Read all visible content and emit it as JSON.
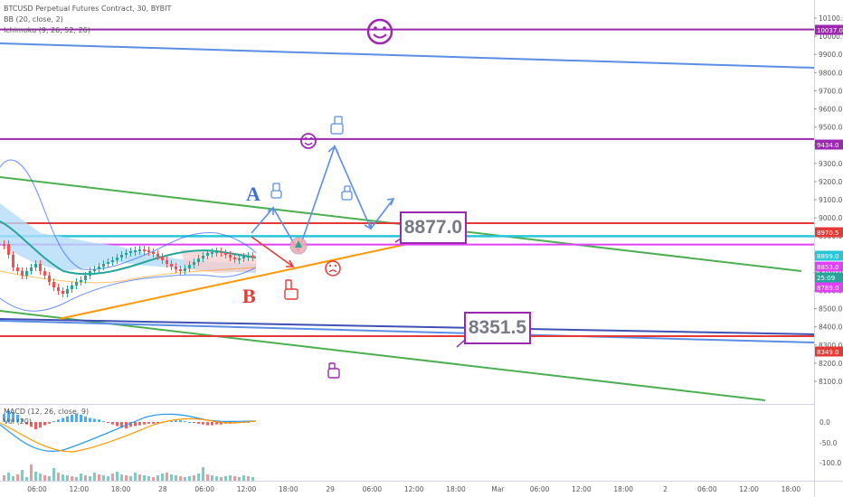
{
  "header": {
    "title": "BTCUSD Perpetual Futures Contract, 30, BYBIT",
    "indicator_bb": "BB (20, close, 2)",
    "indicator_ichimoku": "Ichimoku (9, 26, 52, 26)",
    "indicator_macd": "MACD (12, 26, close, 9)",
    "indicator_vol": "Vol (20)"
  },
  "annotations": {
    "label_a": "A",
    "label_b": "B",
    "callout_upper": "8877.0",
    "callout_lower": "8351.5"
  },
  "colors": {
    "purple": "#9c27b0",
    "red": "#e53935",
    "green": "#4caf50",
    "blue_line": "#5b8ee6",
    "blue_dark": "#3f51b5",
    "orange": "#ff9800",
    "cyan": "#26c6da",
    "magenta": "#e040fb",
    "teal": "#26a69a",
    "bb_blue": "#2962ff",
    "ichimoku_fill": "#b3dcf7",
    "candle_up": "#26a69a",
    "candle_down": "#ef5350"
  },
  "price_axis": {
    "ticks": [
      "10100.0",
      "10000.0",
      "9900.0",
      "9800.0",
      "9700.0",
      "9600.0",
      "9500.0",
      "9400.0",
      "9300.0",
      "9200.0",
      "9100.0",
      "9000.0",
      "8900.0",
      "8800.0",
      "8700.0",
      "8600.0",
      "8500.0",
      "8400.0",
      "8300.0",
      "8200.0",
      "8100.0"
    ],
    "tags": [
      {
        "value": "10037.0",
        "color": "#9c27b0"
      },
      {
        "value": "9434.0",
        "color": "#9c27b0"
      },
      {
        "value": "8970.5",
        "color": "#e53935"
      },
      {
        "value": "8899.0",
        "color": "#26c6da"
      },
      {
        "value": "8853.0",
        "color": "#e040fb"
      },
      {
        "value": "25:09",
        "color": "#26a69a"
      },
      {
        "value": "8789.0",
        "color": "#e040fb"
      },
      {
        "value": "8349.0",
        "color": "#e53935"
      }
    ]
  },
  "macd_axis": {
    "ticks": [
      "0.0",
      "-50.0",
      "-100.0"
    ]
  },
  "time_axis": {
    "ticks": [
      "06:00",
      "12:00",
      "18:00",
      "28",
      "06:00",
      "12:00",
      "18:00",
      "29",
      "06:00",
      "12:00",
      "18:00",
      "Mar",
      "06:00",
      "12:00",
      "18:00",
      "2",
      "06:00",
      "12:00",
      "18:00"
    ]
  },
  "chart_data": {
    "type": "line",
    "title": "BTCUSD Perpetual Futures Contract, 30, BYBIT",
    "ylim": [
      8100,
      10100
    ],
    "horizontal_levels": [
      {
        "value": 10037.0,
        "color": "#9c27b0"
      },
      {
        "value": 9434.0,
        "color": "#9c27b0"
      },
      {
        "value": 8970.5,
        "color": "#e53935"
      },
      {
        "value": 8899.0,
        "color": "#26c6da"
      },
      {
        "value": 8853.0,
        "color": "#e040fb"
      },
      {
        "value": 8349.0,
        "color": "#e53935"
      }
    ],
    "projection_points": [
      8980,
      9390,
      9020
    ]
  }
}
